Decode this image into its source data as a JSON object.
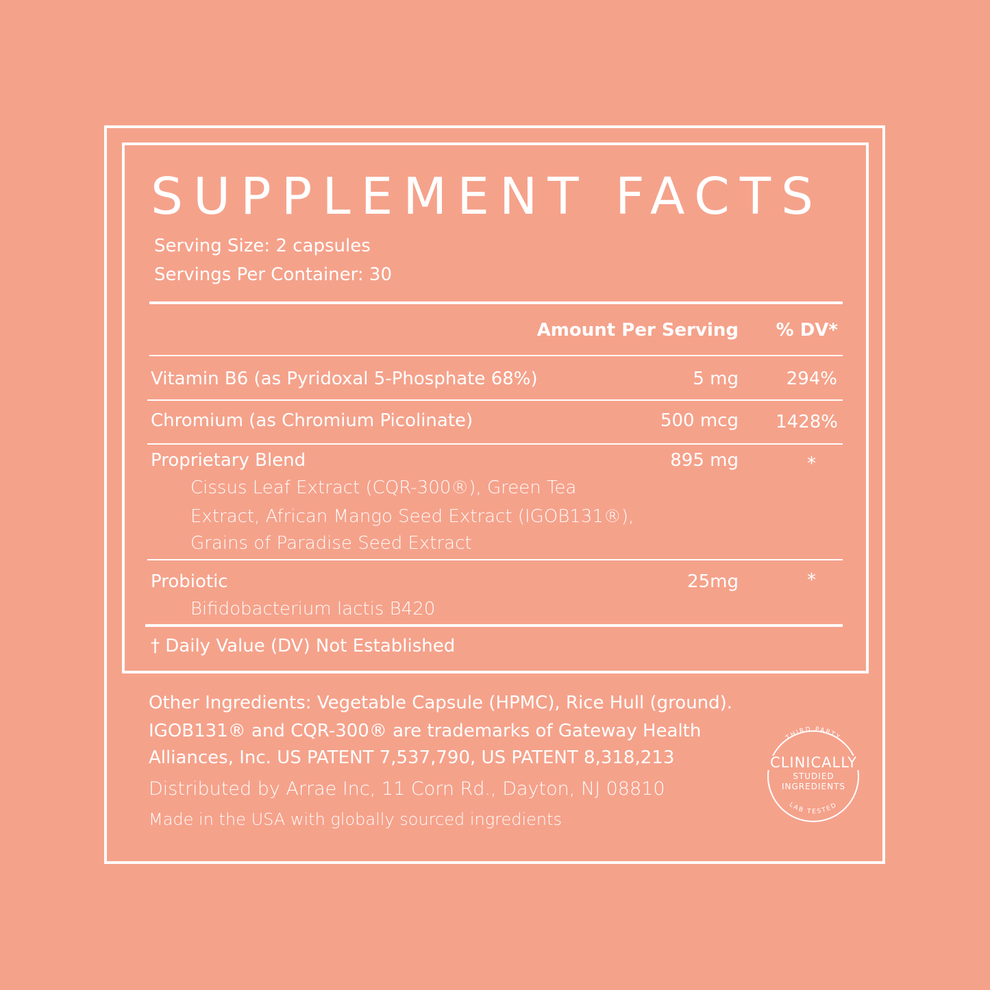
{
  "title": "SUPPLEMENT FACTS",
  "serving_size": "Serving Size: 2 capsules",
  "servings_per_container": "Servings Per Container: 30",
  "header": {
    "amount": "Amount Per Serving",
    "dv": "% DV*"
  },
  "rows": [
    {
      "name": "Vitamin B6 (as Pyridoxal 5-Phosphate 68%)",
      "amount": "5 mg",
      "dv": "294%"
    },
    {
      "name": "Chromium (as Chromium Picolinate)",
      "amount": "500 mcg",
      "dv": "1428%"
    },
    {
      "name": "Proprietary Blend",
      "amount": "895 mg",
      "dv": "*",
      "sub": [
        "Cissus Leaf Extract (CQR-300®), Green Tea",
        "Extract, African Mango Seed Extract (IGOB131®),",
        "Grains of Paradise Seed Extract"
      ]
    },
    {
      "name": "Probiotic",
      "amount": "25mg",
      "dv": "*",
      "sub": [
        "Bifidobacterium lactis B420"
      ]
    }
  ],
  "footnote": "† Daily Value (DV) Not Established",
  "other": [
    "Other Ingredients: Vegetable Capsule (HPMC), Rice Hull (ground).",
    "IGOB131® and CQR-300® are trademarks of Gateway Health",
    "Alliances, Inc. US PATENT 7,537,790, US PATENT 8,318,213"
  ],
  "distributed": "Distributed by Arrae Inc, 11 Corn Rd., Dayton, NJ 08810",
  "made_in": "Made in the USA with globally sourced ingredients",
  "seal": {
    "top": "THIRD PARTY",
    "main": "CLINICALLY",
    "line2": "STUDIED",
    "line3": "INGREDIENTS",
    "bottom": "LAB TESTED"
  },
  "colors": {
    "background": "#F5A28B",
    "foreground": "#FFFFFF"
  }
}
